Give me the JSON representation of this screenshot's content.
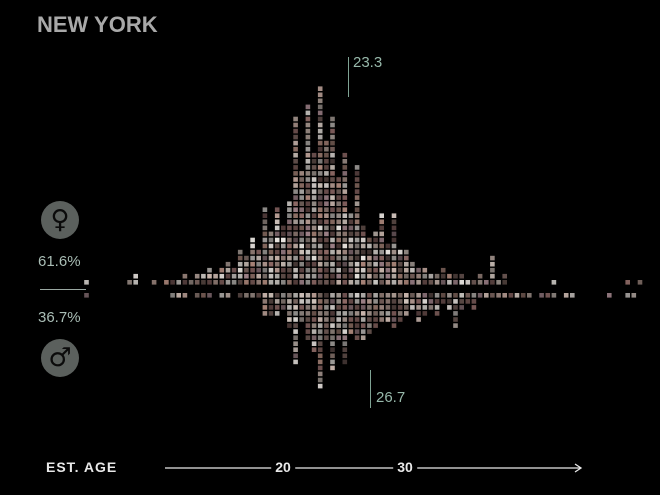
{
  "title": "NEW YORK",
  "female": {
    "icon": "female-symbol-icon",
    "symbol": "♀",
    "percent": "61.6%",
    "median": "23.3"
  },
  "male": {
    "icon": "male-symbol-icon",
    "symbol": "♂",
    "percent": "36.7%",
    "median": "26.7"
  },
  "axis": {
    "label": "EST. AGE",
    "ticks": [
      "20",
      "30"
    ]
  },
  "colors": {
    "background": "#000000",
    "accent": "#7fa394",
    "circle": "#5b605d"
  },
  "chart_data": {
    "type": "bar",
    "description_of_marks": "stacked selfie thumbnails per age bin; females above baseline, males below",
    "xlabel": "EST. AGE",
    "x_ticks": [
      20,
      30
    ],
    "bin_start_age": 4,
    "bin_width_years": 0.5,
    "series": [
      {
        "name": "female",
        "percent": 61.6,
        "median_age": 23.3,
        "values": [
          1,
          0,
          0,
          0,
          0,
          0,
          0,
          1,
          2,
          0,
          0,
          1,
          0,
          1,
          1,
          1,
          2,
          1,
          2,
          2,
          3,
          2,
          3,
          4,
          3,
          6,
          5,
          8,
          6,
          13,
          9,
          13,
          10,
          14,
          28,
          19,
          30,
          22,
          33,
          24,
          28,
          18,
          22,
          12,
          20,
          10,
          8,
          9,
          12,
          7,
          12,
          6,
          6,
          4,
          3,
          3,
          2,
          2,
          3,
          2,
          2,
          2,
          1,
          1,
          2,
          1,
          5,
          1,
          2,
          0,
          0,
          0,
          0,
          0,
          0,
          0,
          1,
          0,
          0,
          0,
          0,
          0,
          0,
          0,
          0,
          0,
          0,
          0,
          1,
          0,
          1
        ]
      },
      {
        "name": "male",
        "percent": 36.7,
        "median_age": 26.7,
        "values": [
          1,
          0,
          0,
          0,
          0,
          0,
          0,
          0,
          0,
          0,
          0,
          0,
          0,
          0,
          1,
          1,
          1,
          0,
          1,
          1,
          1,
          0,
          1,
          1,
          0,
          1,
          1,
          1,
          1,
          4,
          4,
          4,
          3,
          6,
          12,
          5,
          8,
          10,
          16,
          8,
          13,
          8,
          12,
          7,
          8,
          8,
          7,
          6,
          5,
          5,
          6,
          5,
          4,
          3,
          5,
          4,
          3,
          4,
          2,
          3,
          6,
          3,
          2,
          3,
          1,
          1,
          1,
          1,
          1,
          1,
          1,
          1,
          1,
          0,
          1,
          1,
          1,
          0,
          1,
          1,
          0,
          0,
          0,
          0,
          0,
          1,
          0,
          0,
          1,
          1,
          0
        ]
      }
    ]
  }
}
